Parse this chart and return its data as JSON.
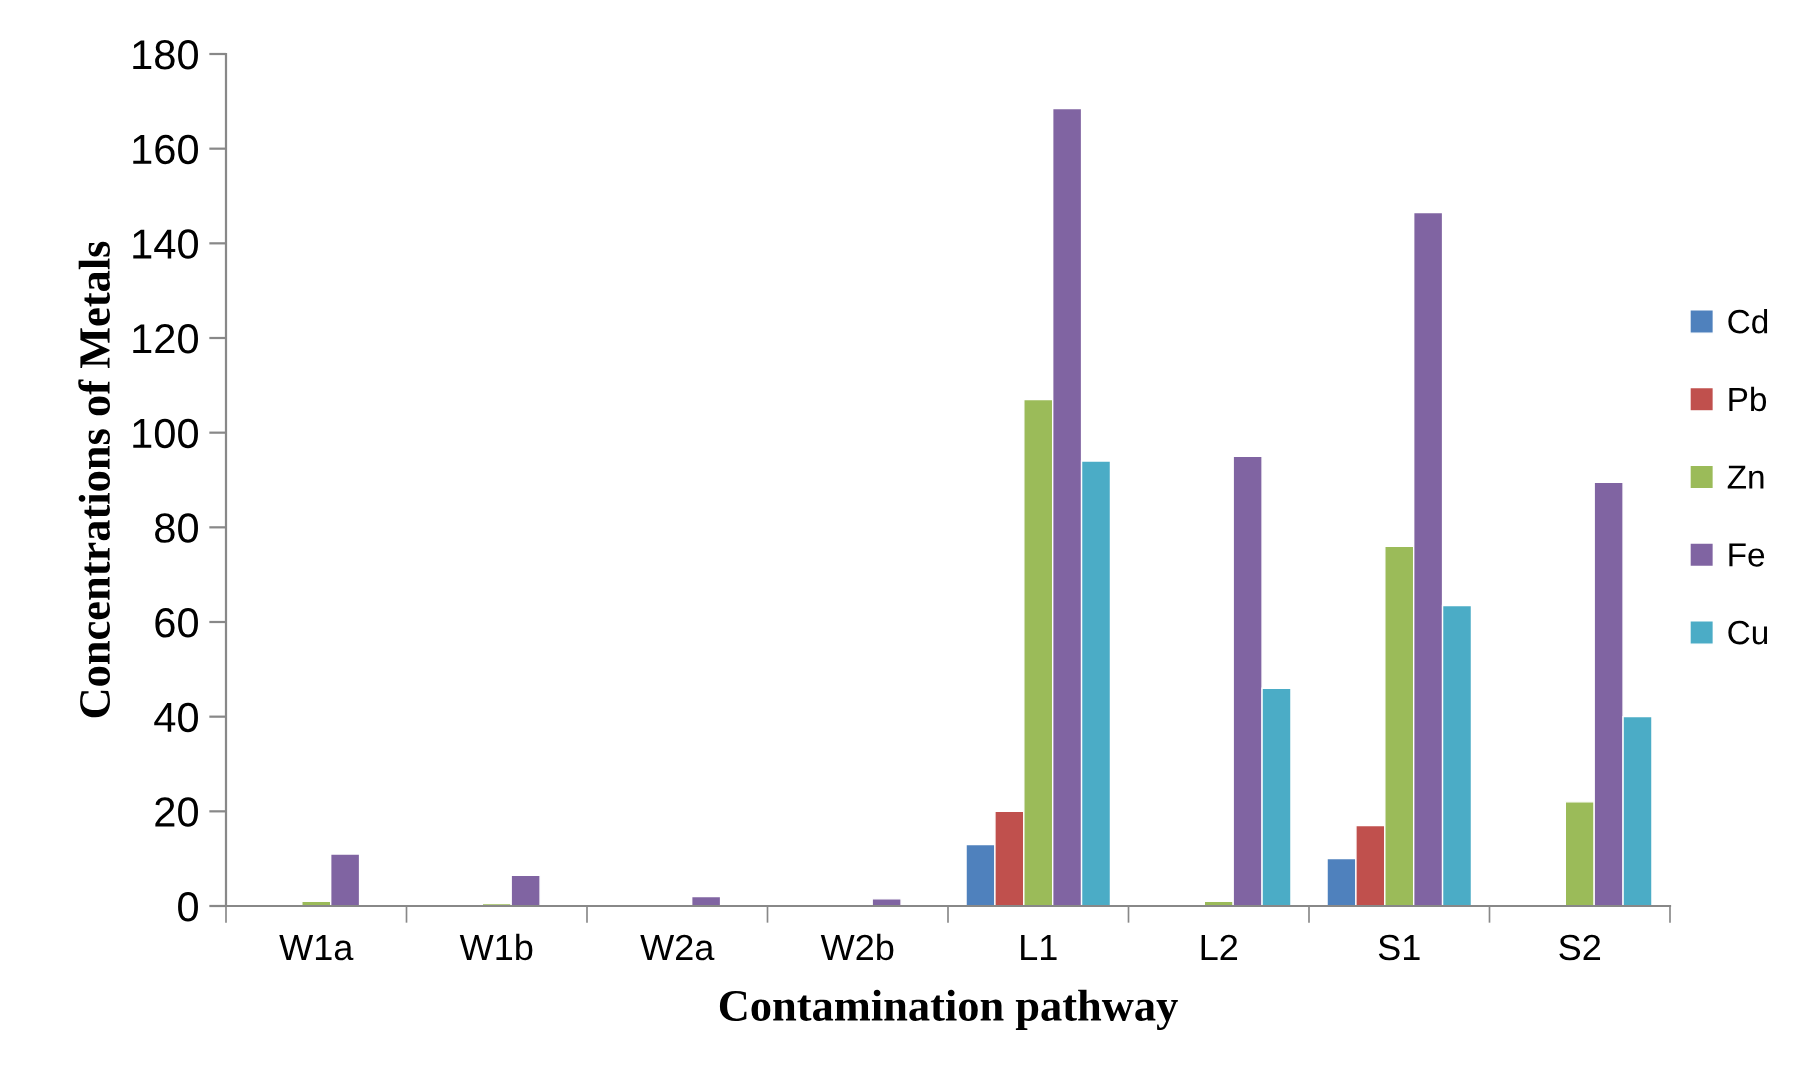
{
  "chart_data": {
    "type": "bar",
    "xlabel": "Contamination pathway",
    "ylabel": "Concentrations of Metals",
    "categories": [
      "W1a",
      "W1b",
      "W2a",
      "W2b",
      "L1",
      "L2",
      "S1",
      "S2"
    ],
    "series": [
      {
        "name": "Cd",
        "color": "#4f81bd",
        "values": [
          null,
          null,
          null,
          null,
          13,
          null,
          10,
          null
        ]
      },
      {
        "name": "Pb",
        "color": "#c0504d",
        "values": [
          null,
          null,
          null,
          null,
          20,
          null,
          17,
          null
        ]
      },
      {
        "name": "Zn",
        "color": "#9bbb59",
        "values": [
          1,
          0.5,
          null,
          null,
          107,
          1,
          76,
          22
        ]
      },
      {
        "name": "Fe",
        "color": "#8064a2",
        "values": [
          11,
          6.5,
          2,
          1.5,
          168.5,
          95,
          146.5,
          89.5
        ]
      },
      {
        "name": "Cu",
        "color": "#4bacc6",
        "values": [
          null,
          null,
          null,
          null,
          94,
          46,
          63.5,
          40
        ]
      }
    ],
    "ylim": [
      0,
      180
    ],
    "yticks": [
      0,
      20,
      40,
      60,
      80,
      100,
      120,
      140,
      160,
      180
    ],
    "grid": false,
    "legend": "right"
  }
}
